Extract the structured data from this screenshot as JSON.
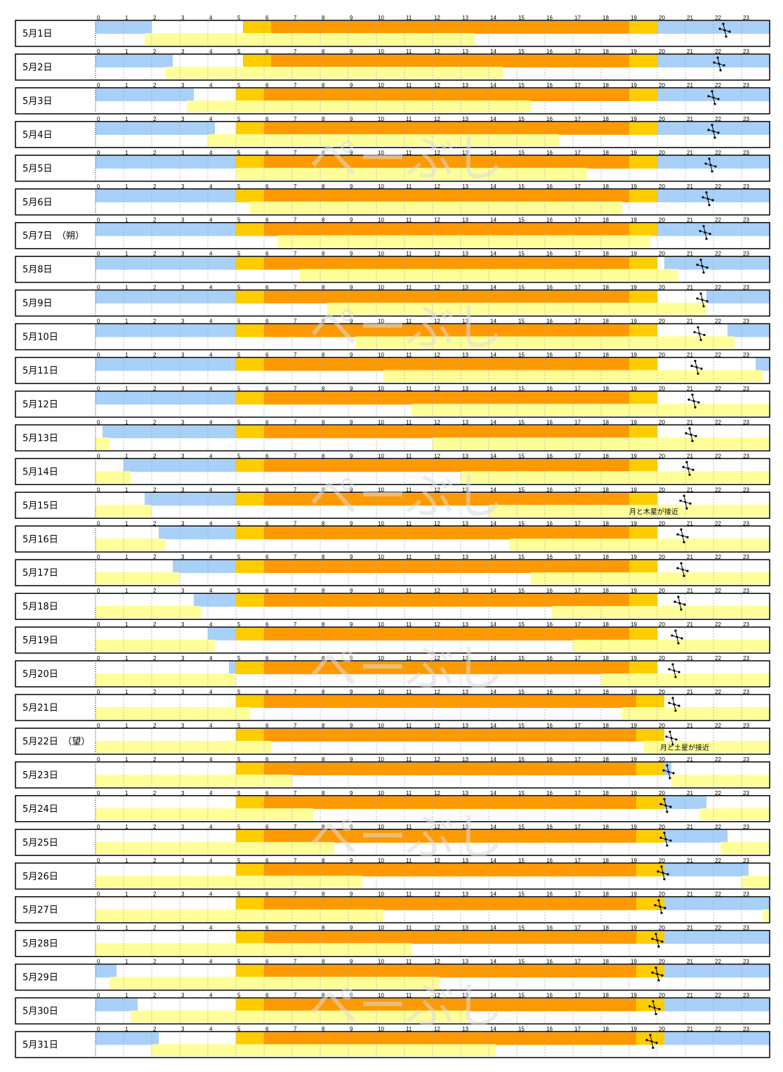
{
  "colors": {
    "night": "#a8d0f8",
    "twilight": "#ffcc00",
    "day": "#ff9900",
    "moon": "#ffff99",
    "row_border": "#000000",
    "grid": "#aaaaaa"
  },
  "icons": {
    "jupiter_marker": "jupiter-icon"
  },
  "watermark": "ぺーぶし",
  "chart_data": {
    "type": "timeline",
    "x_ticks": [
      0,
      1,
      2,
      3,
      4,
      5,
      6,
      7,
      8,
      9,
      10,
      11,
      12,
      13,
      14,
      15,
      16,
      17,
      18,
      19,
      20,
      21,
      22,
      23
    ],
    "xlim": [
      0,
      24
    ],
    "rows": [
      {
        "label": "5月1日",
        "night_morning_end": 2.0,
        "twilight_start": 5.25,
        "sunrise": 6.25,
        "sunset": 19.0,
        "twilight_end": 20.0,
        "night_evening_start": 20.0,
        "moon": [
          [
            1.75,
            13.5
          ]
        ],
        "jupiter_hour": 22.4
      },
      {
        "label": "5月2日",
        "night_morning_end": 2.75,
        "twilight_start": 5.25,
        "sunrise": 6.25,
        "sunset": 19.0,
        "twilight_end": 20.0,
        "night_evening_start": 20.0,
        "moon": [
          [
            2.5,
            14.5
          ]
        ],
        "jupiter_hour": 22.2
      },
      {
        "label": "5月3日",
        "night_morning_end": 3.5,
        "twilight_start": 5.0,
        "sunrise": 6.0,
        "sunset": 19.0,
        "twilight_end": 20.0,
        "night_evening_start": 20.0,
        "moon": [
          [
            3.25,
            15.5
          ]
        ],
        "jupiter_hour": 22.0
      },
      {
        "label": "5月4日",
        "night_morning_end": 4.25,
        "twilight_start": 5.0,
        "sunrise": 6.0,
        "sunset": 19.0,
        "twilight_end": 20.0,
        "night_evening_start": 20.0,
        "moon": [
          [
            4.0,
            16.5
          ]
        ],
        "jupiter_hour": 22.0
      },
      {
        "label": "5月5日",
        "night_morning_end": 5.0,
        "twilight_start": 5.0,
        "sunrise": 6.0,
        "sunset": 19.0,
        "twilight_end": 20.0,
        "night_evening_start": 20.0,
        "moon": [
          [
            5.0,
            17.5
          ]
        ],
        "jupiter_hour": 21.9
      },
      {
        "label": "5月6日",
        "night_morning_end": 5.0,
        "twilight_start": 5.0,
        "sunrise": 6.0,
        "sunset": 19.0,
        "twilight_end": 20.0,
        "night_evening_start": 20.0,
        "moon": [
          [
            5.5,
            18.75
          ]
        ],
        "jupiter_hour": 21.8
      },
      {
        "label": "5月7日　（朔）",
        "night_morning_end": 5.0,
        "twilight_start": 5.0,
        "sunrise": 6.0,
        "sunset": 19.0,
        "twilight_end": 20.0,
        "night_evening_start": 20.0,
        "moon": [
          [
            6.5,
            19.75
          ]
        ],
        "jupiter_hour": 21.7
      },
      {
        "label": "5月8日",
        "night_morning_end": 5.0,
        "twilight_start": 5.0,
        "sunrise": 6.0,
        "sunset": 19.0,
        "twilight_end": 20.0,
        "night_evening_start": 20.25,
        "moon": [
          [
            7.25,
            20.75
          ]
        ],
        "jupiter_hour": 21.6
      },
      {
        "label": "5月9日",
        "night_morning_end": 5.0,
        "twilight_start": 5.0,
        "sunrise": 6.0,
        "sunset": 19.0,
        "twilight_end": 20.0,
        "night_evening_start": 21.75,
        "moon": [
          [
            8.25,
            21.75
          ]
        ],
        "jupiter_hour": 21.6
      },
      {
        "label": "5月10日",
        "night_morning_end": 5.0,
        "twilight_start": 5.0,
        "sunrise": 6.0,
        "sunset": 19.0,
        "twilight_end": 20.0,
        "night_evening_start": 22.5,
        "moon": [
          [
            9.25,
            22.75
          ]
        ],
        "jupiter_hour": 21.5
      },
      {
        "label": "5月11日",
        "night_morning_end": 5.0,
        "twilight_start": 5.0,
        "sunrise": 6.0,
        "sunset": 19.0,
        "twilight_end": 20.0,
        "night_evening_start": 23.5,
        "moon": [
          [
            10.25,
            23.75
          ]
        ],
        "jupiter_hour": 21.4
      },
      {
        "label": "5月12日",
        "night_morning_end": 5.0,
        "twilight_start": 5.0,
        "sunrise": 6.0,
        "sunset": 19.0,
        "twilight_end": 20.0,
        "night_evening_start": null,
        "moon": [
          [
            11.25,
            24
          ]
        ],
        "jupiter_hour": 21.3
      },
      {
        "label": "5月13日",
        "night_morning_start": 0.25,
        "night_morning_end": 5.0,
        "twilight_start": 5.0,
        "sunrise": 6.0,
        "sunset": 19.0,
        "twilight_end": 20.0,
        "night_evening_start": null,
        "moon": [
          [
            0,
            0.5
          ],
          [
            12.0,
            24
          ]
        ],
        "jupiter_hour": 21.2
      },
      {
        "label": "5月14日",
        "night_morning_start": 1.0,
        "night_morning_end": 5.0,
        "twilight_start": 5.0,
        "sunrise": 6.0,
        "sunset": 19.0,
        "twilight_end": 20.0,
        "night_evening_start": null,
        "moon": [
          [
            0,
            1.25
          ],
          [
            13.0,
            24
          ]
        ],
        "jupiter_hour": 21.1
      },
      {
        "label": "5月15日",
        "night_morning_start": 1.75,
        "night_morning_end": 5.0,
        "twilight_start": 5.0,
        "sunrise": 6.0,
        "sunset": 19.0,
        "twilight_end": 20.0,
        "night_evening_start": null,
        "moon": [
          [
            0,
            2.0
          ],
          [
            14.0,
            24
          ]
        ],
        "jupiter_hour": 21.0,
        "note": "月と木星が接近"
      },
      {
        "label": "5月16日",
        "night_morning_start": 2.25,
        "night_morning_end": 5.0,
        "twilight_start": 5.0,
        "sunrise": 6.0,
        "sunset": 19.0,
        "twilight_end": 20.0,
        "night_evening_start": null,
        "moon": [
          [
            0,
            2.5
          ],
          [
            14.75,
            24
          ]
        ],
        "jupiter_hour": 20.9
      },
      {
        "label": "5月17日",
        "night_morning_start": 2.75,
        "night_morning_end": 5.0,
        "twilight_start": 5.0,
        "sunrise": 6.0,
        "sunset": 19.0,
        "twilight_end": 20.0,
        "night_evening_start": null,
        "moon": [
          [
            0,
            3.0
          ],
          [
            15.5,
            24
          ]
        ],
        "jupiter_hour": 20.9
      },
      {
        "label": "5月18日",
        "night_morning_start": 3.5,
        "night_morning_end": 5.0,
        "twilight_start": 5.0,
        "sunrise": 6.0,
        "sunset": 19.0,
        "twilight_end": 20.0,
        "night_evening_start": null,
        "moon": [
          [
            0,
            3.75
          ],
          [
            16.25,
            24
          ]
        ],
        "jupiter_hour": 20.8
      },
      {
        "label": "5月19日",
        "night_morning_start": 4.0,
        "night_morning_end": 5.0,
        "twilight_start": 5.0,
        "sunrise": 6.0,
        "sunset": 19.0,
        "twilight_end": 20.0,
        "night_evening_start": null,
        "moon": [
          [
            0,
            4.25
          ],
          [
            17.0,
            24
          ]
        ],
        "jupiter_hour": 20.7
      },
      {
        "label": "5月20日",
        "night_morning_start": 4.75,
        "night_morning_end": 5.0,
        "twilight_start": 5.0,
        "sunrise": 6.0,
        "sunset": 19.0,
        "twilight_end": 20.0,
        "night_evening_start": null,
        "moon": [
          [
            0,
            5.0
          ],
          [
            18.0,
            24
          ]
        ],
        "jupiter_hour": 20.6
      },
      {
        "label": "5月21日",
        "night_morning_end": null,
        "twilight_start": 5.0,
        "sunrise": 6.0,
        "sunset": 19.25,
        "twilight_end": 20.25,
        "night_evening_start": null,
        "moon": [
          [
            0,
            5.5
          ],
          [
            18.75,
            24
          ]
        ],
        "jupiter_hour": 20.6
      },
      {
        "label": "5月22日　（望）",
        "night_morning_end": null,
        "twilight_start": 5.0,
        "sunrise": 6.0,
        "sunset": 19.25,
        "twilight_end": 20.25,
        "night_evening_start": null,
        "moon": [
          [
            0,
            6.25
          ],
          [
            19.5,
            24
          ]
        ],
        "jupiter_hour": 20.5,
        "note": "月と土星が接近"
      },
      {
        "label": "5月23日",
        "night_morning_end": null,
        "twilight_start": 5.0,
        "sunrise": 6.0,
        "sunset": 19.25,
        "twilight_end": 20.25,
        "night_evening_start": 20.25,
        "night_evening_end": 20.5,
        "moon": [
          [
            0,
            7.0
          ],
          [
            20.5,
            24
          ]
        ],
        "jupiter_hour": 20.4
      },
      {
        "label": "5月24日",
        "night_morning_end": null,
        "twilight_start": 5.0,
        "sunrise": 6.0,
        "sunset": 19.25,
        "twilight_end": 20.25,
        "night_evening_start": 20.25,
        "night_evening_end": 21.75,
        "moon": [
          [
            0,
            7.75
          ],
          [
            21.5,
            24
          ]
        ],
        "jupiter_hour": 20.3
      },
      {
        "label": "5月25日",
        "night_morning_end": null,
        "twilight_start": 5.0,
        "sunrise": 6.0,
        "sunset": 19.25,
        "twilight_end": 20.25,
        "night_evening_start": 20.25,
        "night_evening_end": 22.5,
        "moon": [
          [
            0,
            8.5
          ],
          [
            22.25,
            24
          ]
        ],
        "jupiter_hour": 20.3
      },
      {
        "label": "5月26日",
        "night_morning_end": null,
        "twilight_start": 5.0,
        "sunrise": 6.0,
        "sunset": 19.25,
        "twilight_end": 20.25,
        "night_evening_start": 20.25,
        "night_evening_end": 23.25,
        "moon": [
          [
            0,
            9.5
          ],
          [
            23.0,
            24
          ]
        ],
        "jupiter_hour": 20.2
      },
      {
        "label": "5月27日",
        "night_morning_end": null,
        "twilight_start": 5.0,
        "sunrise": 6.0,
        "sunset": 19.25,
        "twilight_end": 20.25,
        "night_evening_start": 20.25,
        "night_evening_end": 24,
        "moon": [
          [
            0,
            10.25
          ],
          [
            23.75,
            24
          ]
        ],
        "jupiter_hour": 20.1
      },
      {
        "label": "5月28日",
        "night_morning_end": null,
        "twilight_start": 5.0,
        "sunrise": 6.0,
        "sunset": 19.25,
        "twilight_end": 20.25,
        "night_evening_start": 20.25,
        "night_evening_end": 24,
        "moon": [
          [
            0,
            11.25
          ]
        ],
        "jupiter_hour": 20.0
      },
      {
        "label": "5月29日",
        "night_morning_end": 0.75,
        "twilight_start": 5.0,
        "sunrise": 6.0,
        "sunset": 19.25,
        "twilight_end": 20.25,
        "night_evening_start": 20.25,
        "night_evening_end": 24,
        "moon": [
          [
            0.5,
            12.25
          ]
        ],
        "jupiter_hour": 20.0
      },
      {
        "label": "5月30日",
        "night_morning_end": 1.5,
        "twilight_start": 5.0,
        "sunrise": 6.0,
        "sunset": 19.25,
        "twilight_end": 20.25,
        "night_evening_start": 20.25,
        "night_evening_end": 24,
        "moon": [
          [
            1.25,
            13.25
          ]
        ],
        "jupiter_hour": 19.9
      },
      {
        "label": "5月31日",
        "night_morning_end": 2.25,
        "twilight_start": 5.0,
        "sunrise": 6.0,
        "sunset": 19.25,
        "twilight_end": 20.25,
        "night_evening_start": 20.25,
        "night_evening_end": 24,
        "moon": [
          [
            2.0,
            14.25
          ]
        ],
        "jupiter_hour": 19.8
      }
    ]
  }
}
